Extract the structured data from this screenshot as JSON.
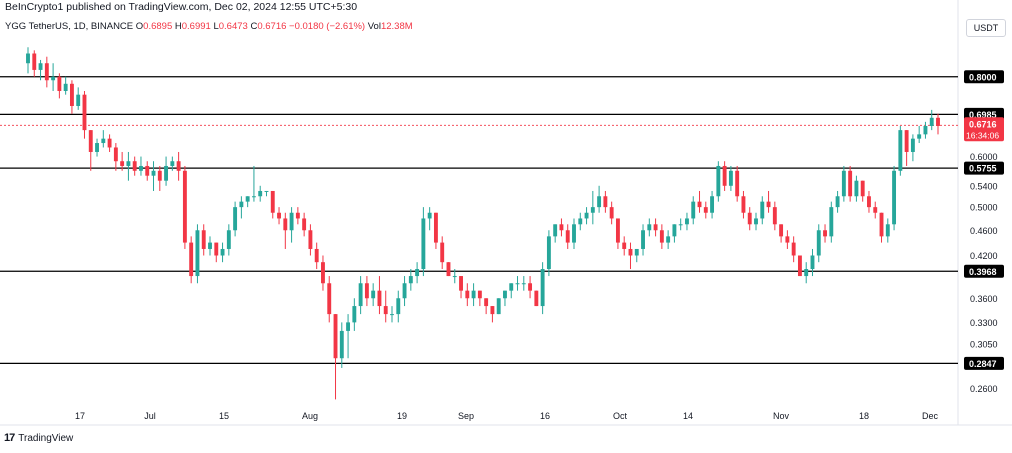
{
  "header": {
    "publisher_line": "BeInCrypto1 published on TradingView.com, Dec 02, 2024 12:55 UTC+5:30"
  },
  "symbol_info": {
    "symbol": "YGG",
    "pair_label": "TetherUS, 1D, BINANCE",
    "open_label": "O",
    "open": "0.6895",
    "high_label": "H",
    "high": "0.6991",
    "low_label": "L",
    "low": "0.6473",
    "close_label": "C",
    "close": "0.6716",
    "change": "−0.0180 (−2.61%)",
    "vol_label": "Vol",
    "volume": "12.38M"
  },
  "currency": "USDT",
  "footer": {
    "brand": "TradingView",
    "logo_text": "17"
  },
  "colors": {
    "up": "#26a69a",
    "down": "#f23645",
    "level_line": "#000000",
    "level_label_bg": "#000000",
    "price_label_bg": "#f23645",
    "countdown_bg": "#f23645"
  },
  "chart_data": {
    "type": "candlestick",
    "scale": "log",
    "ylim": [
      0.245,
      0.92
    ],
    "y_ticks": [
      "0.8000",
      "0.6000",
      "0.5400",
      "0.5000",
      "0.4600",
      "0.4200",
      "0.3600",
      "0.3300",
      "0.3050",
      "0.2600"
    ],
    "x_ticks": [
      "17",
      "Jul",
      "15",
      "Aug",
      "19",
      "Sep",
      "16",
      "Oct",
      "14",
      "Nov",
      "18",
      "Dec"
    ],
    "levels": [
      "0.8000",
      "0.6985",
      "0.5755",
      "0.3968",
      "0.2847"
    ],
    "last_price": "0.6716",
    "countdown": "16:34:06",
    "candles_ohlc": [
      [
        0.84,
        0.89,
        0.81,
        0.87
      ],
      [
        0.87,
        0.88,
        0.8,
        0.82
      ],
      [
        0.82,
        0.85,
        0.79,
        0.84
      ],
      [
        0.84,
        0.86,
        0.77,
        0.79
      ],
      [
        0.79,
        0.84,
        0.76,
        0.8
      ],
      [
        0.8,
        0.81,
        0.74,
        0.76
      ],
      [
        0.76,
        0.8,
        0.75,
        0.78
      ],
      [
        0.78,
        0.79,
        0.7,
        0.72
      ],
      [
        0.72,
        0.77,
        0.71,
        0.75
      ],
      [
        0.75,
        0.76,
        0.64,
        0.66
      ],
      [
        0.66,
        0.66,
        0.57,
        0.61
      ],
      [
        0.61,
        0.64,
        0.6,
        0.63
      ],
      [
        0.63,
        0.66,
        0.62,
        0.64
      ],
      [
        0.64,
        0.65,
        0.61,
        0.62
      ],
      [
        0.62,
        0.63,
        0.57,
        0.59
      ],
      [
        0.59,
        0.61,
        0.57,
        0.58
      ],
      [
        0.58,
        0.61,
        0.55,
        0.59
      ],
      [
        0.59,
        0.6,
        0.56,
        0.57
      ],
      [
        0.57,
        0.6,
        0.56,
        0.58
      ],
      [
        0.58,
        0.59,
        0.55,
        0.56
      ],
      [
        0.56,
        0.59,
        0.53,
        0.57
      ],
      [
        0.57,
        0.58,
        0.53,
        0.55
      ],
      [
        0.55,
        0.6,
        0.54,
        0.58
      ],
      [
        0.58,
        0.6,
        0.57,
        0.59
      ],
      [
        0.59,
        0.61,
        0.55,
        0.57
      ],
      [
        0.57,
        0.58,
        0.43,
        0.44
      ],
      [
        0.44,
        0.45,
        0.38,
        0.39
      ],
      [
        0.39,
        0.47,
        0.38,
        0.46
      ],
      [
        0.46,
        0.47,
        0.42,
        0.43
      ],
      [
        0.43,
        0.45,
        0.42,
        0.44
      ],
      [
        0.44,
        0.44,
        0.41,
        0.42
      ],
      [
        0.42,
        0.44,
        0.41,
        0.43
      ],
      [
        0.43,
        0.47,
        0.42,
        0.46
      ],
      [
        0.46,
        0.51,
        0.45,
        0.5
      ],
      [
        0.5,
        0.52,
        0.48,
        0.51
      ],
      [
        0.51,
        0.52,
        0.5,
        0.52
      ],
      [
        0.52,
        0.58,
        0.51,
        0.52
      ],
      [
        0.52,
        0.54,
        0.51,
        0.53
      ],
      [
        0.53,
        0.53,
        0.52,
        0.53
      ],
      [
        0.53,
        0.53,
        0.48,
        0.49
      ],
      [
        0.49,
        0.5,
        0.47,
        0.48
      ],
      [
        0.48,
        0.49,
        0.43,
        0.46
      ],
      [
        0.46,
        0.5,
        0.44,
        0.49
      ],
      [
        0.49,
        0.5,
        0.47,
        0.48
      ],
      [
        0.48,
        0.49,
        0.45,
        0.46
      ],
      [
        0.46,
        0.47,
        0.42,
        0.43
      ],
      [
        0.43,
        0.44,
        0.4,
        0.41
      ],
      [
        0.41,
        0.42,
        0.37,
        0.38
      ],
      [
        0.38,
        0.39,
        0.33,
        0.34
      ],
      [
        0.34,
        0.34,
        0.25,
        0.29
      ],
      [
        0.29,
        0.33,
        0.28,
        0.32
      ],
      [
        0.32,
        0.34,
        0.29,
        0.33
      ],
      [
        0.33,
        0.36,
        0.32,
        0.35
      ],
      [
        0.35,
        0.39,
        0.34,
        0.38
      ],
      [
        0.38,
        0.39,
        0.35,
        0.36
      ],
      [
        0.36,
        0.38,
        0.35,
        0.37
      ],
      [
        0.37,
        0.39,
        0.34,
        0.35
      ],
      [
        0.35,
        0.37,
        0.33,
        0.34
      ],
      [
        0.34,
        0.35,
        0.33,
        0.34
      ],
      [
        0.34,
        0.37,
        0.33,
        0.36
      ],
      [
        0.36,
        0.39,
        0.35,
        0.38
      ],
      [
        0.38,
        0.4,
        0.37,
        0.39
      ],
      [
        0.39,
        0.41,
        0.38,
        0.4
      ],
      [
        0.4,
        0.5,
        0.39,
        0.48
      ],
      [
        0.48,
        0.5,
        0.46,
        0.49
      ],
      [
        0.49,
        0.49,
        0.43,
        0.44
      ],
      [
        0.44,
        0.45,
        0.4,
        0.41
      ],
      [
        0.41,
        0.41,
        0.39,
        0.39
      ],
      [
        0.39,
        0.4,
        0.38,
        0.39
      ],
      [
        0.39,
        0.39,
        0.36,
        0.37
      ],
      [
        0.37,
        0.38,
        0.35,
        0.36
      ],
      [
        0.36,
        0.38,
        0.35,
        0.37
      ],
      [
        0.37,
        0.37,
        0.35,
        0.36
      ],
      [
        0.36,
        0.36,
        0.34,
        0.35
      ],
      [
        0.35,
        0.35,
        0.33,
        0.34
      ],
      [
        0.34,
        0.36,
        0.34,
        0.36
      ],
      [
        0.36,
        0.37,
        0.35,
        0.37
      ],
      [
        0.37,
        0.38,
        0.36,
        0.38
      ],
      [
        0.38,
        0.39,
        0.37,
        0.38
      ],
      [
        0.38,
        0.39,
        0.37,
        0.38
      ],
      [
        0.38,
        0.39,
        0.36,
        0.37
      ],
      [
        0.37,
        0.37,
        0.35,
        0.35
      ],
      [
        0.35,
        0.41,
        0.34,
        0.4
      ],
      [
        0.4,
        0.46,
        0.39,
        0.45
      ],
      [
        0.45,
        0.47,
        0.44,
        0.47
      ],
      [
        0.47,
        0.48,
        0.45,
        0.46
      ],
      [
        0.46,
        0.47,
        0.43,
        0.44
      ],
      [
        0.44,
        0.48,
        0.43,
        0.47
      ],
      [
        0.47,
        0.49,
        0.46,
        0.48
      ],
      [
        0.48,
        0.5,
        0.47,
        0.49
      ],
      [
        0.49,
        0.53,
        0.47,
        0.5
      ],
      [
        0.5,
        0.54,
        0.49,
        0.52
      ],
      [
        0.52,
        0.53,
        0.49,
        0.5
      ],
      [
        0.5,
        0.51,
        0.47,
        0.48
      ],
      [
        0.48,
        0.48,
        0.43,
        0.44
      ],
      [
        0.44,
        0.45,
        0.42,
        0.43
      ],
      [
        0.43,
        0.44,
        0.4,
        0.42
      ],
      [
        0.42,
        0.43,
        0.41,
        0.43
      ],
      [
        0.43,
        0.47,
        0.42,
        0.46
      ],
      [
        0.46,
        0.48,
        0.45,
        0.47
      ],
      [
        0.47,
        0.48,
        0.45,
        0.46
      ],
      [
        0.46,
        0.47,
        0.43,
        0.44
      ],
      [
        0.44,
        0.46,
        0.43,
        0.45
      ],
      [
        0.45,
        0.47,
        0.44,
        0.47
      ],
      [
        0.47,
        0.48,
        0.46,
        0.47
      ],
      [
        0.47,
        0.49,
        0.46,
        0.48
      ],
      [
        0.48,
        0.52,
        0.47,
        0.51
      ],
      [
        0.51,
        0.53,
        0.49,
        0.5
      ],
      [
        0.5,
        0.51,
        0.48,
        0.49
      ],
      [
        0.49,
        0.53,
        0.48,
        0.52
      ],
      [
        0.52,
        0.59,
        0.51,
        0.58
      ],
      [
        0.58,
        0.59,
        0.53,
        0.54
      ],
      [
        0.54,
        0.58,
        0.53,
        0.57
      ],
      [
        0.57,
        0.58,
        0.51,
        0.52
      ],
      [
        0.52,
        0.53,
        0.48,
        0.49
      ],
      [
        0.49,
        0.5,
        0.46,
        0.47
      ],
      [
        0.47,
        0.49,
        0.46,
        0.48
      ],
      [
        0.48,
        0.52,
        0.47,
        0.51
      ],
      [
        0.51,
        0.53,
        0.49,
        0.5
      ],
      [
        0.5,
        0.51,
        0.46,
        0.47
      ],
      [
        0.47,
        0.47,
        0.44,
        0.45
      ],
      [
        0.45,
        0.46,
        0.43,
        0.44
      ],
      [
        0.44,
        0.45,
        0.41,
        0.42
      ],
      [
        0.42,
        0.42,
        0.39,
        0.39
      ],
      [
        0.39,
        0.41,
        0.38,
        0.4
      ],
      [
        0.4,
        0.43,
        0.39,
        0.42
      ],
      [
        0.42,
        0.47,
        0.41,
        0.46
      ],
      [
        0.46,
        0.47,
        0.44,
        0.45
      ],
      [
        0.45,
        0.51,
        0.44,
        0.5
      ],
      [
        0.5,
        0.53,
        0.49,
        0.52
      ],
      [
        0.52,
        0.58,
        0.51,
        0.57
      ],
      [
        0.57,
        0.58,
        0.51,
        0.52
      ],
      [
        0.52,
        0.56,
        0.51,
        0.55
      ],
      [
        0.55,
        0.55,
        0.51,
        0.52
      ],
      [
        0.52,
        0.53,
        0.49,
        0.5
      ],
      [
        0.5,
        0.51,
        0.48,
        0.49
      ],
      [
        0.49,
        0.49,
        0.44,
        0.45
      ],
      [
        0.45,
        0.48,
        0.44,
        0.47
      ],
      [
        0.47,
        0.58,
        0.46,
        0.57
      ],
      [
        0.57,
        0.67,
        0.56,
        0.66
      ],
      [
        0.66,
        0.66,
        0.58,
        0.61
      ],
      [
        0.61,
        0.65,
        0.59,
        0.64
      ],
      [
        0.64,
        0.67,
        0.63,
        0.65
      ],
      [
        0.65,
        0.68,
        0.64,
        0.67
      ],
      [
        0.67,
        0.71,
        0.66,
        0.69
      ],
      [
        0.69,
        0.7,
        0.65,
        0.67
      ]
    ]
  }
}
